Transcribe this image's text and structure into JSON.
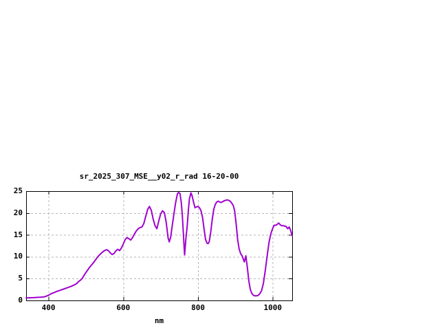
{
  "page": {
    "background": "#ffffff"
  },
  "chart_data": {
    "type": "line",
    "title": "sr_2025_307_MSE__y02_r_rad 16-20-00",
    "xlabel": "nm",
    "ylabel": "",
    "xlim": [
      340,
      1052
    ],
    "ylim": [
      0,
      25
    ],
    "xticks": [
      400,
      600,
      800,
      1000
    ],
    "yticks": [
      0,
      5,
      10,
      15,
      20,
      25
    ],
    "grid": true,
    "legend_position": "none",
    "line_color": "#a000d0",
    "grid_color": "#b5b5b5",
    "axis_color": "#000000",
    "series": [
      {
        "name": "sr_2025_307_MSE__y02_r_rad",
        "x": [
          340,
          345,
          350,
          355,
          360,
          365,
          370,
          375,
          380,
          385,
          390,
          395,
          400,
          405,
          410,
          415,
          420,
          425,
          430,
          435,
          440,
          445,
          450,
          455,
          460,
          465,
          470,
          475,
          480,
          485,
          490,
          495,
          500,
          505,
          510,
          515,
          520,
          525,
          530,
          535,
          540,
          545,
          550,
          555,
          560,
          565,
          570,
          575,
          580,
          585,
          590,
          595,
          600,
          605,
          610,
          615,
          620,
          625,
          630,
          635,
          640,
          645,
          650,
          655,
          660,
          665,
          670,
          675,
          680,
          685,
          690,
          695,
          700,
          705,
          710,
          715,
          720,
          723,
          727,
          730,
          735,
          740,
          745,
          748,
          752,
          755,
          758,
          762,
          764,
          768,
          771,
          774,
          777,
          781,
          784,
          788,
          792,
          796,
          800,
          804,
          808,
          812,
          816,
          820,
          824,
          827,
          830,
          834,
          838,
          842,
          846,
          850,
          854,
          858,
          862,
          866,
          870,
          874,
          878,
          882,
          886,
          890,
          894,
          898,
          902,
          906,
          910,
          914,
          918,
          921,
          924,
          928,
          932,
          936,
          940,
          944,
          948,
          952,
          956,
          960,
          965,
          970,
          975,
          980,
          985,
          990,
          995,
          1000,
          1004,
          1008,
          1012,
          1016,
          1020,
          1024,
          1028,
          1032,
          1036,
          1040,
          1044,
          1048,
          1052
        ],
        "y": [
          0.6,
          0.6,
          0.62,
          0.63,
          0.65,
          0.67,
          0.7,
          0.72,
          0.75,
          0.78,
          0.85,
          1.0,
          1.2,
          1.45,
          1.65,
          1.8,
          2.0,
          2.15,
          2.3,
          2.45,
          2.6,
          2.75,
          2.9,
          3.05,
          3.2,
          3.4,
          3.6,
          3.85,
          4.3,
          4.6,
          5.0,
          5.7,
          6.4,
          7.0,
          7.6,
          8.1,
          8.6,
          9.2,
          9.8,
          10.3,
          10.7,
          11.1,
          11.4,
          11.6,
          11.4,
          10.9,
          10.5,
          10.7,
          11.3,
          11.7,
          11.4,
          12.0,
          12.9,
          13.9,
          14.4,
          14.1,
          13.8,
          14.4,
          15.2,
          15.9,
          16.4,
          16.7,
          16.8,
          17.6,
          19.2,
          20.8,
          21.5,
          20.6,
          18.6,
          17.1,
          16.4,
          18.2,
          19.8,
          20.5,
          20.1,
          17.8,
          14.3,
          13.4,
          14.5,
          16.5,
          19.5,
          22.3,
          24.4,
          24.7,
          24.4,
          22.5,
          19.5,
          13.4,
          10.4,
          14.5,
          17.0,
          20.5,
          23.2,
          24.6,
          24.0,
          22.5,
          21.2,
          21.4,
          21.5,
          21.2,
          20.5,
          19.0,
          16.5,
          14.0,
          13.1,
          13.0,
          13.4,
          15.6,
          18.5,
          20.8,
          21.9,
          22.5,
          22.7,
          22.5,
          22.4,
          22.6,
          22.8,
          22.9,
          23.0,
          22.9,
          22.7,
          22.3,
          21.8,
          20.5,
          17.5,
          14.0,
          11.8,
          10.7,
          10.2,
          9.5,
          8.8,
          10.2,
          7.5,
          4.5,
          2.5,
          1.6,
          1.2,
          1.05,
          1.05,
          1.1,
          1.5,
          2.2,
          3.9,
          6.9,
          10.2,
          13.3,
          15.3,
          16.5,
          17.2,
          17.2,
          17.4,
          17.7,
          17.3,
          17.1,
          17.1,
          17.0,
          16.9,
          16.4,
          16.8,
          16.0,
          14.8
        ]
      }
    ]
  }
}
